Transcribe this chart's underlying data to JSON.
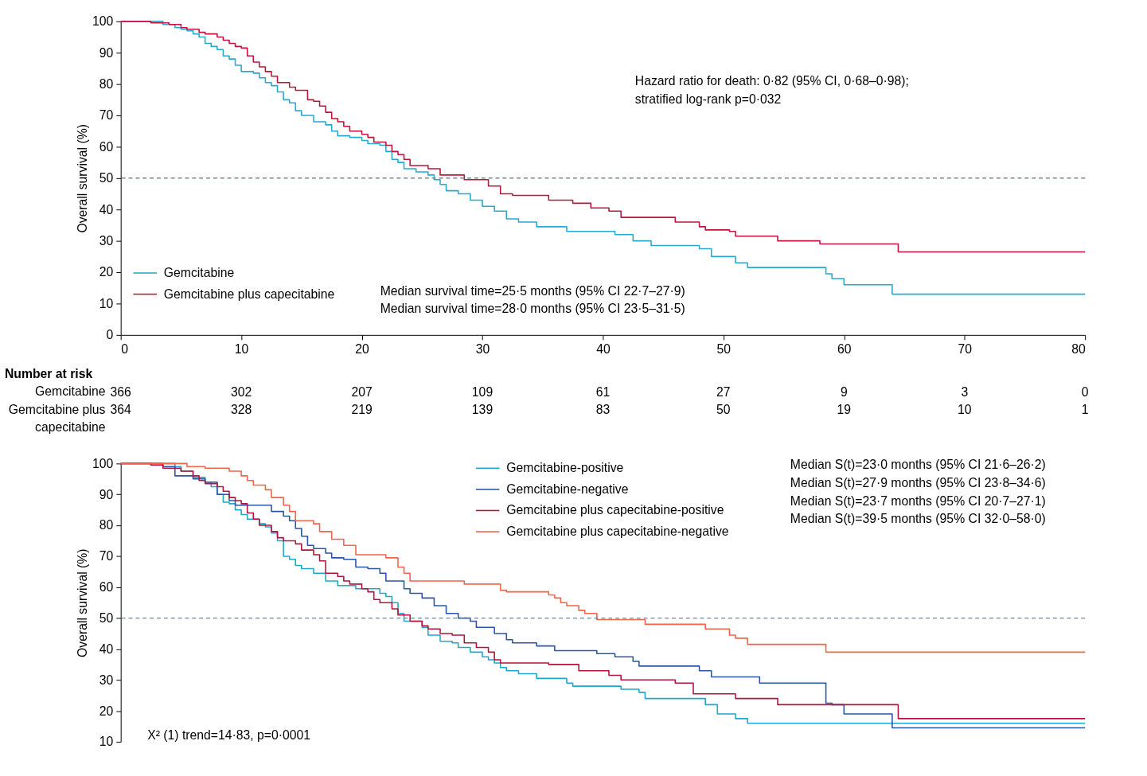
{
  "chart_data": [
    {
      "type": "step",
      "ylabel": "Overall survival (%)",
      "xlim": [
        0,
        80
      ],
      "ylim": [
        0,
        100
      ],
      "xticks": [
        0,
        10,
        20,
        30,
        40,
        50,
        60,
        70,
        80
      ],
      "yticks": [
        0,
        10,
        20,
        30,
        40,
        50,
        60,
        70,
        80,
        90,
        100
      ],
      "grid": false,
      "legend": "bottom left",
      "line_style": "solid",
      "series": [
        {
          "name": "Gemcitabine",
          "color": "#29a9cf",
          "x": [
            0,
            3.5,
            4.5,
            5,
            5.5,
            6,
            6.5,
            7,
            7.5,
            8,
            8.5,
            9,
            9.5,
            10,
            11,
            11.5,
            12,
            12.5,
            13,
            13.5,
            14,
            14.5,
            15,
            16,
            17,
            17.5,
            18,
            19,
            20,
            20.5,
            21.5,
            22,
            22.5,
            23,
            23.5,
            24.5,
            25.5,
            26,
            26.5,
            27,
            28,
            29,
            30,
            31,
            32,
            33,
            34.5,
            37,
            41,
            42.5,
            44,
            48,
            49,
            51,
            52,
            58.5,
            59,
            60,
            64,
            80
          ],
          "values": [
            100,
            99,
            98,
            97.5,
            97,
            96,
            95,
            93,
            92,
            91,
            89,
            88,
            86,
            84,
            83.5,
            82,
            80.5,
            79.5,
            77.5,
            75,
            74,
            71.5,
            70,
            68,
            67,
            65,
            63.5,
            63,
            62,
            61,
            60.5,
            58.5,
            56,
            55,
            53,
            52,
            51,
            49.5,
            48,
            46,
            45,
            43,
            41,
            39.5,
            37,
            36,
            34.5,
            33,
            32,
            30,
            28.5,
            27.5,
            25,
            23,
            21.5,
            19.5,
            18,
            16,
            13,
            13
          ]
        },
        {
          "name": "Gemcitabine plus capecitabine",
          "color": "#c0143c",
          "x": [
            0,
            2.5,
            4,
            5,
            5.5,
            6.5,
            7,
            8,
            8.5,
            9,
            9.5,
            10,
            10.5,
            11,
            11.5,
            12,
            12.5,
            13,
            14,
            14.5,
            15.5,
            16,
            16.5,
            17,
            17.5,
            18,
            18.5,
            19,
            20,
            20.5,
            21,
            22,
            22.5,
            23,
            23.5,
            24,
            25.5,
            26.5,
            28.5,
            30.5,
            31.5,
            32.5,
            35.5,
            37.5,
            39,
            40.5,
            41.5,
            46,
            48,
            48.5,
            50.5,
            51,
            54.5,
            58,
            64.5,
            80
          ],
          "values": [
            100,
            99.5,
            99,
            98,
            97.5,
            96.5,
            96,
            95,
            94,
            93,
            92,
            91.5,
            89,
            87,
            85.5,
            84,
            82.5,
            80.5,
            79,
            78,
            75,
            74.5,
            73,
            71,
            69,
            68,
            66.5,
            65,
            64,
            63,
            61.5,
            60.5,
            58.5,
            57.5,
            56,
            54,
            53,
            51,
            49.5,
            47.5,
            45,
            44.5,
            43,
            42,
            40.5,
            39.5,
            37.5,
            36,
            34.5,
            33.5,
            33,
            31.5,
            30,
            29,
            26.5,
            26.5
          ]
        }
      ],
      "ref_lines": [
        {
          "axis": "y",
          "value": 50,
          "line_style": "dashed",
          "color": "#6f8590"
        }
      ],
      "annotations": [
        "Hazard ratio for death: 0·82 (95% CI, 0·68–0·98);",
        "stratified log-rank p=0·032",
        "Median survival time=25·5 months (95% CI 22·7–27·9)",
        "Median survival time=28·0 months (95% CI 23·5–31·5)"
      ]
    },
    {
      "type": "heatmap",
      "title": "Number at risk",
      "categories": [
        "0",
        "10",
        "20",
        "30",
        "40",
        "50",
        "60",
        "70",
        "80"
      ],
      "tick_labels": "y",
      "data_labels": true,
      "y_categories": [
        "Gemcitabine",
        "Gemcitabine plus capecitabine"
      ],
      "cells": [
        [
          366,
          302,
          207,
          109,
          61,
          27,
          9,
          3,
          0
        ],
        [
          364,
          328,
          219,
          139,
          83,
          50,
          19,
          10,
          1
        ]
      ]
    },
    {
      "type": "step",
      "ylabel": "Overall survival (%)",
      "xlim": [
        0,
        80
      ],
      "ylim": [
        10,
        100
      ],
      "yticks": [
        10,
        20,
        30,
        40,
        50,
        60,
        70,
        80,
        90,
        100
      ],
      "tick_labels": "y",
      "grid": false,
      "legend": "top right",
      "line_style": "solid",
      "series": [
        {
          "name": "Gemcitabine-positive",
          "color": "#1ea7d0",
          "x": [
            0,
            4.5,
            5,
            6,
            7,
            7.5,
            8,
            8.5,
            9,
            9.5,
            10,
            10.5,
            11.5,
            12,
            12.5,
            13,
            13.5,
            14,
            14.5,
            15,
            16,
            17,
            18,
            19.5,
            21.5,
            22,
            22.5,
            23,
            23.5,
            25,
            25.5,
            26.5,
            27.5,
            28,
            29,
            30,
            30.5,
            31,
            31.5,
            32,
            33,
            34.5,
            37,
            37.5,
            41.5,
            43,
            43.5,
            48.5,
            49.5,
            51,
            52,
            80
          ],
          "values": [
            100,
            99,
            97.5,
            95.5,
            94,
            92.5,
            90,
            87.5,
            87,
            85,
            83.5,
            82,
            80.5,
            79.5,
            77.5,
            75,
            70,
            69,
            67,
            66,
            64.5,
            62,
            60.5,
            59.5,
            58,
            57,
            55,
            51.5,
            49,
            47,
            44.5,
            42.5,
            42,
            40.5,
            39,
            37.5,
            36.5,
            35.5,
            34,
            33,
            32,
            30.5,
            29,
            28,
            27,
            26,
            24,
            22,
            19,
            17.5,
            16,
            16
          ]
        },
        {
          "name": "Gemcitabine-negative",
          "color": "#2a56a5",
          "x": [
            0,
            3.5,
            4.5,
            6,
            7,
            8,
            9,
            9.5,
            12.5,
            13.5,
            14,
            14.5,
            15,
            15.5,
            16,
            17,
            17.5,
            18.5,
            19.5,
            20.5,
            21.5,
            22,
            23.5,
            24,
            25,
            26,
            27,
            28,
            29,
            29.5,
            31,
            32,
            32.5,
            34.5,
            36,
            39.5,
            41,
            42.5,
            43,
            48,
            49,
            53,
            58.5,
            59,
            60,
            64,
            80
          ],
          "values": [
            100,
            99,
            96,
            95,
            94,
            90,
            88,
            86.5,
            84.5,
            83,
            81.5,
            79,
            76.5,
            73.5,
            72.5,
            71,
            69.5,
            69,
            66.5,
            66,
            64.5,
            62,
            59.5,
            58,
            56.5,
            54,
            51.5,
            50,
            49,
            47,
            45,
            43,
            42,
            41,
            39.5,
            38.5,
            37.5,
            36,
            34.5,
            33,
            31,
            29,
            22.5,
            22,
            19,
            14.5,
            14.5
          ]
        },
        {
          "name": "Gemcitabine plus capecitabine-positive",
          "color": "#b5123d",
          "x": [
            0,
            2.5,
            3.5,
            5,
            6,
            6.5,
            7,
            8,
            8.5,
            9,
            9.5,
            10,
            10.5,
            11,
            11.5,
            12.5,
            13,
            13.5,
            14.5,
            15,
            16,
            16.5,
            17,
            18,
            18.5,
            19,
            20,
            20.5,
            21,
            21.5,
            22.5,
            23,
            24,
            25,
            25.5,
            26.5,
            27.5,
            28.5,
            29.5,
            30.5,
            31,
            31.5,
            35.5,
            38,
            40.5,
            41.5,
            46,
            47.5,
            51,
            54.5,
            64.5,
            80
          ],
          "values": [
            100,
            99.5,
            98.5,
            97.5,
            96,
            94.5,
            93.5,
            92.5,
            91,
            89,
            88,
            87,
            84,
            82,
            80,
            78,
            76,
            75,
            74,
            72,
            70.5,
            68.5,
            64.5,
            63.5,
            62,
            61,
            59.5,
            58.5,
            56,
            55,
            53,
            51,
            49,
            47.5,
            46.5,
            45,
            44.5,
            42,
            40.5,
            39,
            36.5,
            35.5,
            35,
            33,
            31.5,
            30,
            29,
            25.5,
            24,
            22,
            17.5,
            17.5
          ]
        },
        {
          "name": "Gemcitabine plus capecitabine-negative",
          "color": "#f4634a",
          "x": [
            0,
            5.5,
            7,
            9,
            10,
            10.5,
            11,
            12,
            12.5,
            13.5,
            14,
            14.5,
            16,
            16.5,
            17.5,
            18.5,
            19.5,
            22,
            23,
            23.5,
            24,
            28.5,
            31.5,
            32,
            35.5,
            36,
            36.5,
            37,
            38,
            38.5,
            39.5,
            43.5,
            48.5,
            50.5,
            51,
            52,
            58.5,
            80
          ],
          "values": [
            100,
            99,
            98.5,
            97.5,
            96,
            94.5,
            93,
            91.5,
            89,
            86.5,
            84.5,
            81.5,
            80.5,
            78,
            75.5,
            73.5,
            70.5,
            69.5,
            66.5,
            64.5,
            62,
            61,
            59,
            58.5,
            57.5,
            56.5,
            55,
            54,
            52.5,
            51.5,
            49.5,
            48,
            46.5,
            44.5,
            43.5,
            41.5,
            39,
            39
          ]
        }
      ],
      "ref_lines": [
        {
          "axis": "y",
          "value": 50,
          "line_style": "dashed",
          "color": "#6f8590"
        }
      ],
      "annotations": [
        "Median S(t)=23·0 months (95% CI 21·6–26·2)",
        "Median S(t)=27·9 months (95% CI 23·8–34·6)",
        "Median S(t)=23·7 months (95% CI 20·7–27·1)",
        "Median S(t)=39·5 months (95% CI 32·0–58·0)",
        "X² (1) trend=14·83, p=0·0001"
      ]
    }
  ]
}
